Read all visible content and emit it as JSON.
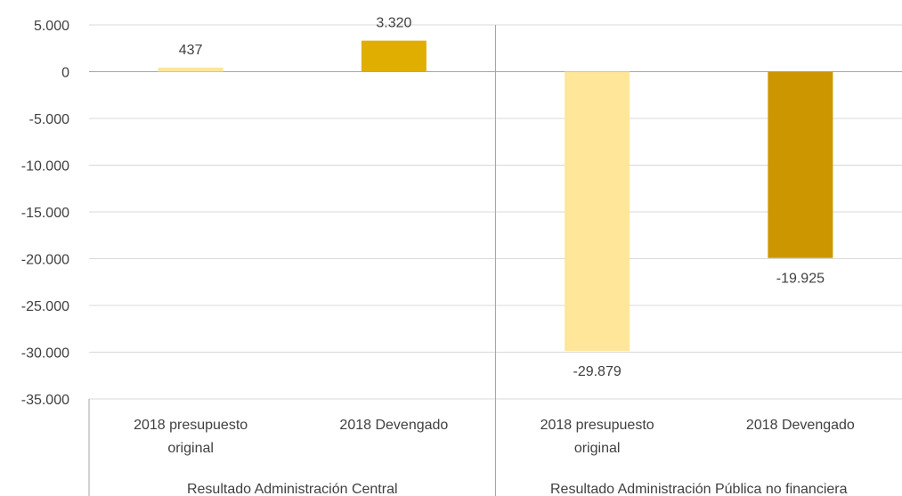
{
  "chart_data": {
    "type": "bar",
    "title": "",
    "ylim": [
      -35000,
      5000
    ],
    "yticks": [
      5000,
      0,
      -5000,
      -10000,
      -15000,
      -20000,
      -25000,
      -30000,
      -35000
    ],
    "ytick_labels": [
      "5.000",
      "0",
      "-5.000",
      "-10.000",
      "-15.000",
      "-20.000",
      "-25.000",
      "-30.000",
      "-35.000"
    ],
    "grid": true,
    "groups": [
      {
        "label": "Resultado Administración Central",
        "categories": [
          {
            "label": [
              "2018 presupuesto",
              "original"
            ],
            "value": 437,
            "data_label": "437",
            "color": "#FFE699"
          },
          {
            "label": [
              "2018 Devengado"
            ],
            "value": 3320,
            "data_label": "3.320",
            "color": "#E0AE00"
          }
        ]
      },
      {
        "label": "Resultado Administración Pública no financiera",
        "categories": [
          {
            "label": [
              "2018 presupuesto",
              "original"
            ],
            "value": -29879,
            "data_label": "-29.879",
            "color": "#FFE699"
          },
          {
            "label": [
              "2018 Devengado"
            ],
            "value": -19925,
            "data_label": "-19.925",
            "color": "#CC9600"
          }
        ]
      }
    ]
  }
}
